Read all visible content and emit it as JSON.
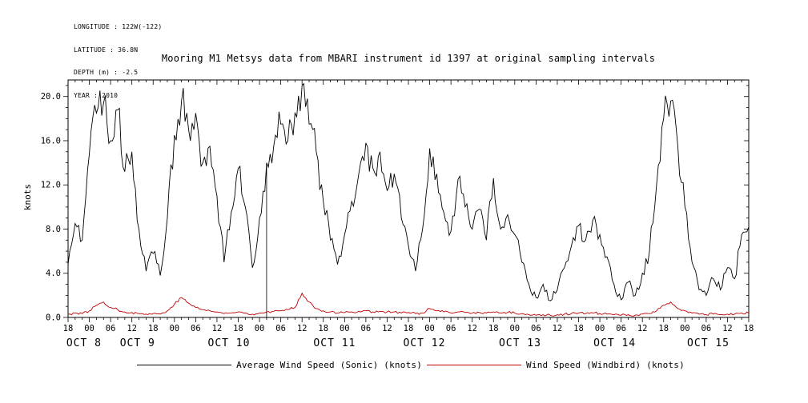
{
  "header": {
    "info_lines": [
      "LONGITUDE : 122W(-122)",
      "LATITUDE : 36.8N",
      "DEPTH (m) : -2.5",
      "YEAR : 2010"
    ]
  },
  "chart_data": {
    "type": "line",
    "title": "Mooring M1 Metsys data from MBARI instrument id 1397 at original sampling intervals",
    "xlabel": "",
    "ylabel": "knots",
    "ylim": [
      0,
      21.5
    ],
    "x_hours_range": [
      0,
      192
    ],
    "grid": false,
    "legend_position": "bottom",
    "y_major_ticks": [
      0,
      4,
      8,
      12,
      16,
      20
    ],
    "y_major_tick_labels": [
      "0.0",
      "4.0",
      "8.0",
      "12.0",
      "16.0",
      "20.0"
    ],
    "y_minor_tick_step": 1,
    "x_major_tick_step_hours": 6,
    "x_minor_tick_step_hours": 2,
    "x_tick_labels": [
      "18",
      "00",
      "06",
      "12",
      "18",
      "00",
      "06",
      "12",
      "18",
      "00",
      "06",
      "12",
      "18",
      "00",
      "06",
      "12",
      "18",
      "00",
      "06",
      "12",
      "18",
      "00",
      "06",
      "12",
      "18",
      "00",
      "06",
      "12",
      "18",
      "00",
      "06",
      "12",
      "18"
    ],
    "date_labels": [
      {
        "label": "OCT 8",
        "t_hours": 4.5
      },
      {
        "label": "OCT 9",
        "t_hours": 19.6
      },
      {
        "label": "OCT 10",
        "t_hours": 45.4
      },
      {
        "label": "OCT 11",
        "t_hours": 75.2
      },
      {
        "label": "OCT 12",
        "t_hours": 100.5
      },
      {
        "label": "OCT 13",
        "t_hours": 127.5
      },
      {
        "label": "OCT 14",
        "t_hours": 154.2
      },
      {
        "label": "OCT 15",
        "t_hours": 180.6
      }
    ],
    "artifact_line": {
      "t_hours": 56,
      "from": 0,
      "to": 14.0
    },
    "series": [
      {
        "name": "Average Wind Speed (Sonic) (knots)",
        "color": "#000000",
        "t_start_hours": 0,
        "t_step_hours": 2,
        "values": [
          4.8,
          8.5,
          7.0,
          14.8,
          18.5,
          19.4,
          16.0,
          18.8,
          13.2,
          15.0,
          8.0,
          4.2,
          5.8,
          3.8,
          9.0,
          16.5,
          19.6,
          17.0,
          18.5,
          14.0,
          15.5,
          11.0,
          5.0,
          9.5,
          13.5,
          10.0,
          4.5,
          9.0,
          14.0,
          15.5,
          17.5,
          16.0,
          18.5,
          21.0,
          17.5,
          15.0,
          10.5,
          7.0,
          4.8,
          7.5,
          10.5,
          13.0,
          15.8,
          13.5,
          15.0,
          11.5,
          13.0,
          9.0,
          6.5,
          4.2,
          8.0,
          15.3,
          13.0,
          9.5,
          7.8,
          12.5,
          10.0,
          8.0,
          9.8,
          7.0,
          12.6,
          8.0,
          9.3,
          7.5,
          5.0,
          3.0,
          1.8,
          3.0,
          1.5,
          2.5,
          4.5,
          6.5,
          8.3,
          7.0,
          8.8,
          7.5,
          5.5,
          3.0,
          1.6,
          3.2,
          2.0,
          4.0,
          6.0,
          12.0,
          18.0,
          19.6,
          15.5,
          10.0,
          5.0,
          2.5,
          2.0,
          3.5,
          2.5,
          4.5,
          3.5,
          7.5,
          8.2
        ]
      },
      {
        "name": "Wind Speed (Windbird) (knots)",
        "color": "#c00000",
        "t_start_hours": 0,
        "t_step_hours": 2,
        "values": [
          0.3,
          0.4,
          0.35,
          0.6,
          1.1,
          1.4,
          0.9,
          0.7,
          0.5,
          0.45,
          0.35,
          0.3,
          0.35,
          0.3,
          0.6,
          1.2,
          1.8,
          1.3,
          0.9,
          0.7,
          0.6,
          0.5,
          0.35,
          0.4,
          0.5,
          0.4,
          0.3,
          0.4,
          0.5,
          0.55,
          0.6,
          0.7,
          0.9,
          2.2,
          1.4,
          0.8,
          0.6,
          0.5,
          0.4,
          0.45,
          0.5,
          0.55,
          0.6,
          0.5,
          0.55,
          0.5,
          0.5,
          0.4,
          0.45,
          0.35,
          0.4,
          0.8,
          0.6,
          0.5,
          0.4,
          0.5,
          0.45,
          0.4,
          0.45,
          0.4,
          0.5,
          0.4,
          0.45,
          0.4,
          0.35,
          0.25,
          0.2,
          0.25,
          0.2,
          0.25,
          0.3,
          0.35,
          0.4,
          0.35,
          0.4,
          0.35,
          0.3,
          0.25,
          0.2,
          0.25,
          0.2,
          0.3,
          0.35,
          0.6,
          1.1,
          1.4,
          0.8,
          0.6,
          0.4,
          0.3,
          0.25,
          0.3,
          0.25,
          0.3,
          0.3,
          0.4,
          0.4
        ]
      }
    ]
  }
}
